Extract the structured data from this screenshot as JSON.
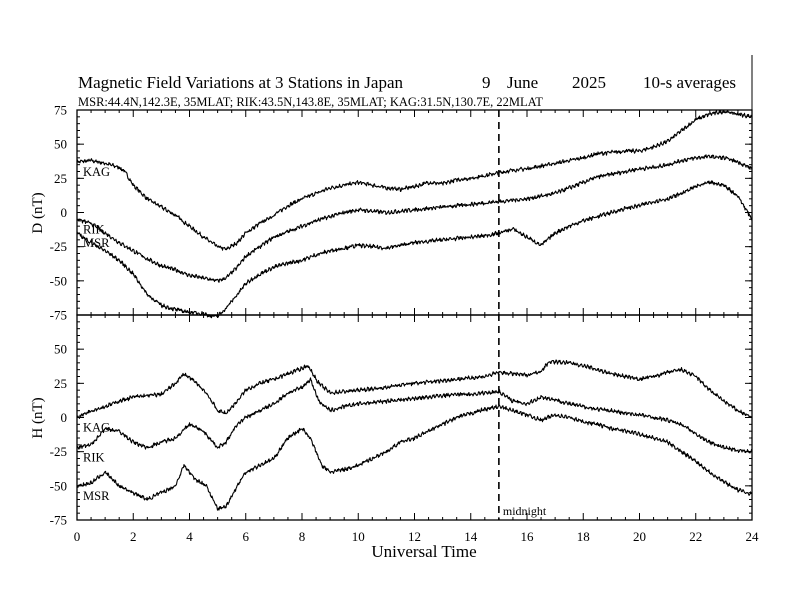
{
  "chart_data": {
    "type": "line",
    "title": {
      "main": "Magnetic Field Variations at 3 Stations in Japan",
      "day": "9",
      "month": "June",
      "year": "2025",
      "averaging": "10-s averages"
    },
    "subtitle": "MSR:44.4N,142.3E, 35MLAT;  RIK:43.5N,143.8E, 35MLAT;  KAG:31.5N,130.7E, 22MLAT",
    "xlabel": "Universal Time",
    "xlim": [
      0,
      24
    ],
    "xticks": [
      0,
      2,
      4,
      6,
      8,
      10,
      12,
      14,
      16,
      18,
      20,
      22,
      24
    ],
    "grid": false,
    "annotations": [
      {
        "text": "midnight",
        "x": 15
      }
    ],
    "panels": [
      {
        "id": "D",
        "ylabel": "D (nT)",
        "ylim": [
          -75,
          75
        ],
        "yticks": [
          -75,
          -50,
          -25,
          0,
          25,
          50,
          75
        ],
        "series": [
          {
            "name": "KAG",
            "x": [
              0,
              0.5,
              1.0,
              1.5,
              1.7,
              2.0,
              2.5,
              3.0,
              3.5,
              4.0,
              4.5,
              5.0,
              5.3,
              5.7,
              6.0,
              6.5,
              7.0,
              7.5,
              8.0,
              8.5,
              9.0,
              9.5,
              10.0,
              10.5,
              11.0,
              11.5,
              12.0,
              12.5,
              13.0,
              13.5,
              14.0,
              14.5,
              15.0,
              15.5,
              16.0,
              16.5,
              17.0,
              17.5,
              18.0,
              18.5,
              19.0,
              19.5,
              20.0,
              20.5,
              21.0,
              21.5,
              22.0,
              22.5,
              23.0,
              23.5,
              24.0
            ],
            "y": [
              37,
              38,
              36,
              33,
              30,
              20,
              10,
              4,
              -2,
              -10,
              -18,
              -25,
              -27,
              -22,
              -15,
              -8,
              -2,
              5,
              10,
              14,
              18,
              20,
              22,
              20,
              18,
              17,
              19,
              22,
              21,
              24,
              25,
              27,
              29,
              31,
              32,
              34,
              36,
              38,
              40,
              43,
              44,
              45,
              45,
              48,
              52,
              60,
              68,
              72,
              74,
              72,
              70
            ]
          },
          {
            "name": "RIK",
            "x": [
              0,
              0.5,
              1.0,
              1.5,
              2.0,
              2.5,
              3.0,
              3.5,
              4.0,
              4.5,
              5.0,
              5.3,
              5.7,
              6.0,
              6.5,
              7.0,
              7.5,
              8.0,
              8.5,
              9.0,
              9.5,
              10.0,
              10.5,
              11.0,
              11.5,
              12.0,
              12.5,
              13.0,
              13.5,
              14.0,
              14.5,
              15.0,
              15.5,
              16.0,
              16.5,
              17.0,
              17.5,
              18.0,
              18.5,
              19.0,
              19.5,
              20.0,
              20.5,
              21.0,
              21.5,
              22.0,
              22.5,
              23.0,
              23.5,
              24.0
            ],
            "y": [
              -5,
              -8,
              -15,
              -22,
              -28,
              -34,
              -39,
              -42,
              -46,
              -48,
              -50,
              -48,
              -40,
              -32,
              -25,
              -18,
              -14,
              -10,
              -6,
              -3,
              0,
              2,
              1,
              0,
              1,
              2,
              3,
              4,
              5,
              6,
              7,
              8,
              9,
              10,
              12,
              14,
              18,
              22,
              26,
              28,
              30,
              32,
              33,
              35,
              38,
              40,
              41,
              40,
              37,
              32
            ]
          },
          {
            "name": "MSR",
            "x": [
              0,
              0.5,
              1.0,
              1.5,
              2.0,
              2.5,
              3.0,
              3.5,
              4.0,
              4.5,
              4.8,
              5.0,
              5.3,
              5.7,
              6.0,
              6.5,
              7.0,
              7.5,
              8.0,
              8.5,
              9.0,
              9.5,
              10.0,
              10.5,
              11.0,
              11.5,
              12.0,
              12.5,
              13.0,
              13.5,
              14.0,
              14.5,
              15.0,
              15.5,
              16.0,
              16.5,
              17.0,
              17.5,
              18.0,
              18.5,
              19.0,
              19.5,
              20.0,
              20.5,
              21.0,
              21.5,
              22.0,
              22.5,
              23.0,
              23.5,
              24.0
            ],
            "y": [
              -15,
              -22,
              -28,
              -35,
              -45,
              -60,
              -68,
              -71,
              -73,
              -74,
              -76,
              -76,
              -70,
              -60,
              -52,
              -45,
              -40,
              -37,
              -35,
              -31,
              -28,
              -26,
              -24,
              -25,
              -26,
              -24,
              -22,
              -21,
              -20,
              -19,
              -18,
              -17,
              -15,
              -12,
              -18,
              -24,
              -15,
              -10,
              -6,
              -3,
              0,
              3,
              5,
              8,
              10,
              14,
              19,
              22,
              20,
              12,
              -5
            ]
          }
        ]
      },
      {
        "id": "H",
        "ylabel": "H (nT)",
        "ylim": [
          -75,
          75
        ],
        "yticks": [
          -75,
          -50,
          -25,
          0,
          25,
          50
        ],
        "series": [
          {
            "name": "KAG",
            "x": [
              0,
              0.5,
              1.0,
              1.5,
              2.0,
              2.5,
              3.0,
              3.5,
              3.8,
              4.2,
              4.6,
              5.0,
              5.3,
              5.7,
              6.0,
              6.5,
              7.0,
              7.5,
              8.0,
              8.2,
              8.6,
              9.0,
              9.5,
              10.0,
              10.5,
              11.0,
              11.5,
              12.0,
              12.5,
              13.0,
              13.5,
              14.0,
              14.5,
              15.0,
              15.5,
              16.0,
              16.5,
              16.8,
              17.5,
              18.0,
              18.5,
              19.0,
              19.5,
              20.0,
              20.5,
              21.0,
              21.5,
              22.0,
              22.5,
              23.0,
              23.5,
              24.0
            ],
            "y": [
              0,
              5,
              8,
              12,
              15,
              16,
              17,
              25,
              32,
              26,
              18,
              5,
              3,
              12,
              20,
              25,
              28,
              32,
              36,
              38,
              25,
              18,
              19,
              20,
              21,
              22,
              24,
              25,
              26,
              27,
              28,
              29,
              30,
              33,
              32,
              31,
              34,
              41,
              40,
              38,
              35,
              32,
              30,
              28,
              30,
              33,
              35,
              30,
              20,
              12,
              5,
              0
            ]
          },
          {
            "name": "RIK",
            "x": [
              0,
              0.5,
              1.0,
              1.5,
              2.0,
              2.5,
              3.0,
              3.5,
              4.0,
              4.5,
              5.0,
              5.3,
              5.7,
              6.0,
              6.5,
              7.0,
              7.5,
              8.0,
              8.3,
              8.6,
              9.0,
              9.5,
              10.0,
              10.5,
              11.0,
              11.5,
              12.0,
              12.5,
              13.0,
              13.5,
              14.0,
              14.5,
              15.0,
              15.5,
              16.0,
              16.5,
              17.0,
              17.5,
              18.0,
              18.5,
              19.0,
              19.5,
              20.0,
              20.5,
              21.0,
              21.5,
              22.0,
              22.5,
              23.0,
              23.5,
              24.0
            ],
            "y": [
              -22,
              -20,
              -8,
              -10,
              -18,
              -22,
              -18,
              -15,
              -5,
              -10,
              -22,
              -18,
              -5,
              0,
              5,
              10,
              18,
              22,
              28,
              12,
              5,
              8,
              10,
              11,
              12,
              13,
              14,
              15,
              16,
              17,
              17,
              18,
              19,
              12,
              10,
              15,
              13,
              10,
              8,
              6,
              5,
              3,
              2,
              0,
              -2,
              -5,
              -12,
              -18,
              -22,
              -24,
              -25
            ]
          },
          {
            "name": "MSR",
            "x": [
              0,
              0.5,
              1.0,
              1.5,
              2.0,
              2.5,
              3.0,
              3.5,
              3.8,
              4.2,
              4.6,
              5.0,
              5.3,
              5.7,
              6.0,
              6.5,
              7.0,
              7.5,
              8.0,
              8.3,
              8.7,
              9.0,
              9.5,
              10.0,
              10.5,
              11.0,
              11.5,
              12.0,
              12.5,
              13.0,
              13.5,
              14.0,
              14.5,
              15.0,
              15.5,
              16.0,
              16.5,
              17.0,
              17.5,
              18.0,
              18.5,
              19.0,
              19.5,
              20.0,
              20.5,
              21.0,
              21.5,
              22.0,
              22.5,
              23.0,
              23.5,
              24.0
            ],
            "y": [
              -50,
              -48,
              -40,
              -50,
              -55,
              -60,
              -55,
              -50,
              -35,
              -45,
              -50,
              -67,
              -65,
              -50,
              -40,
              -35,
              -30,
              -15,
              -8,
              -15,
              -35,
              -40,
              -38,
              -35,
              -30,
              -25,
              -18,
              -15,
              -10,
              -5,
              0,
              3,
              6,
              8,
              5,
              2,
              -2,
              2,
              0,
              -3,
              -5,
              -8,
              -10,
              -12,
              -15,
              -18,
              -25,
              -32,
              -40,
              -47,
              -53,
              -56
            ]
          }
        ]
      }
    ]
  }
}
